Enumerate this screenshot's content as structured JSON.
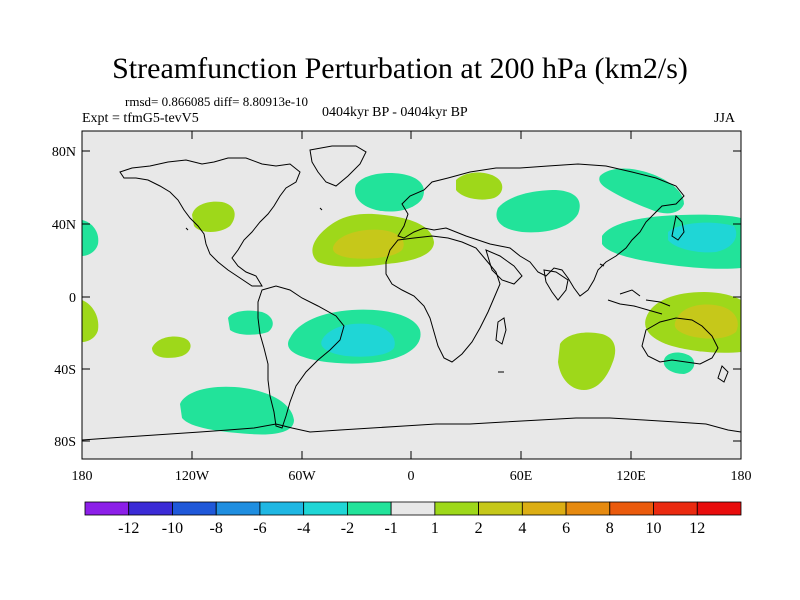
{
  "title": "Streamfunction Perturbation at 200 hPa (km2/s)",
  "stats_line": "rmsd= 0.866085 diff= 8.80913e-10",
  "experiment": "Expt = tfmG5-tevV5",
  "period": "0404kyr BP - 0404kyr BP",
  "season": "JJA",
  "axes": {
    "x_ticks": [
      "180",
      "120W",
      "60W",
      "0",
      "60E",
      "120E",
      "180"
    ],
    "y_ticks": [
      "80N",
      "40N",
      "0",
      "40S",
      "80S"
    ]
  },
  "colorbar": {
    "labels": [
      "-12",
      "-10",
      "-8",
      "-6",
      "-4",
      "-2",
      "-1",
      "1",
      "2",
      "4",
      "6",
      "8",
      "10",
      "12"
    ],
    "colors": [
      "#8c1fe8",
      "#3b2bd6",
      "#1f58d9",
      "#1f8ee0",
      "#1fb7e3",
      "#1fd6d6",
      "#22e39a",
      "#e8e8e8",
      "#9ed81a",
      "#c6c81a",
      "#dcae14",
      "#e68a10",
      "#ea5a0c",
      "#ea2a10",
      "#e80c0c"
    ]
  },
  "colors": {
    "land_ocean_bg": "#e8e8e8",
    "coast": "#000000"
  }
}
